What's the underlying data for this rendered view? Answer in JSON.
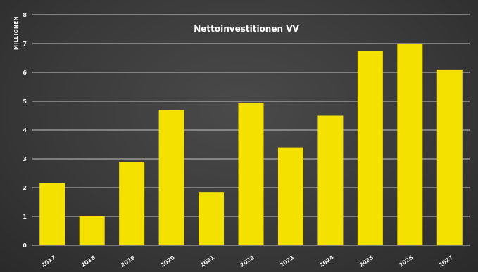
{
  "chart_data": {
    "type": "bar",
    "title": "Nettoinvestitionen VV",
    "xlabel": "",
    "ylabel": "MILLIONEN",
    "categories": [
      "2017",
      "2018",
      "2019",
      "2020",
      "2021",
      "2022",
      "2023",
      "2024",
      "2025",
      "2026",
      "2027"
    ],
    "values": [
      2.15,
      1.0,
      2.9,
      4.7,
      1.85,
      4.95,
      3.4,
      4.5,
      6.75,
      7.0,
      6.1
    ],
    "ylim": [
      0,
      8
    ],
    "yticks": [
      "0",
      "1",
      "2",
      "3",
      "4",
      "5",
      "6",
      "7",
      "8"
    ],
    "grid": true,
    "legend": "none",
    "colors": {
      "bar": "#f5e100",
      "background": "#3a3a3a",
      "grid": "#bdbdbd",
      "text": "#f2f2f2"
    }
  }
}
